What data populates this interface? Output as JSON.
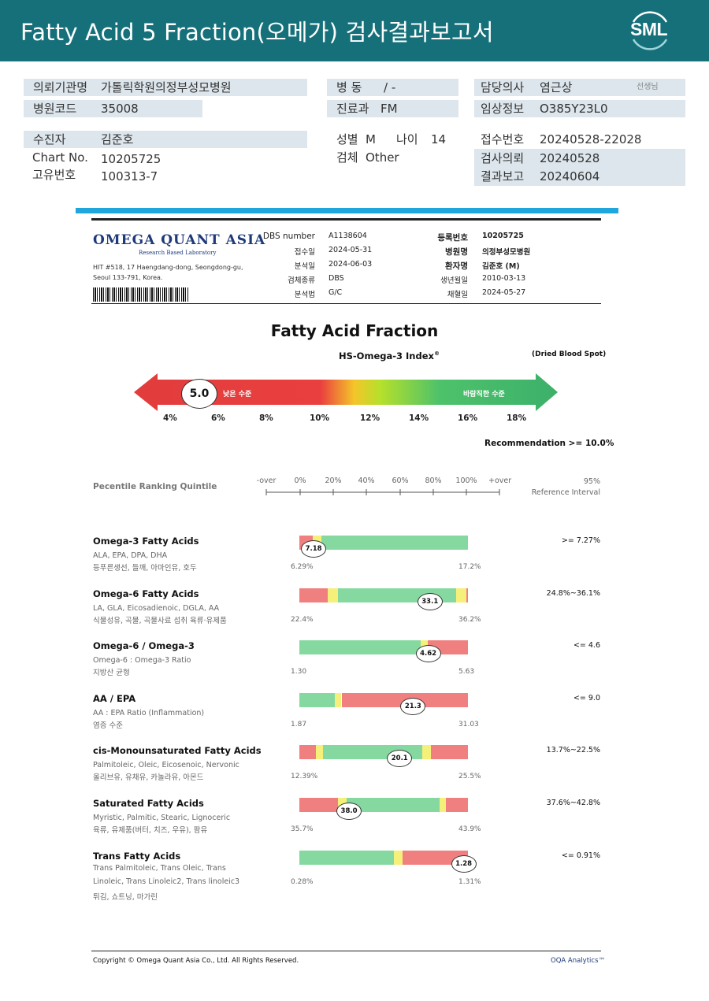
{
  "header": {
    "title": "Fatty Acid 5 Fraction(오메가) 검사결과보고서",
    "logo_text": "SML"
  },
  "patient": {
    "hospital_label": "의뢰기관명",
    "hospital_value": "가톨릭학원의정부성모병원",
    "code_label": "병원코드",
    "code_value": "35008",
    "ward_label": "병 동",
    "ward_value": "/ -",
    "dept_label": "진료과",
    "dept_value": "FM",
    "doctor_label": "담당의사",
    "doctor_value": "염근상",
    "doctor_suffix": "선생님",
    "clinical_label": "임상정보",
    "clinical_value": "O385Y23L0",
    "name_label": "수진자",
    "name_value": "김준호",
    "chart_label": "Chart No.",
    "chart_value": "10205725",
    "uid_label": "고유번호",
    "uid_value": "100313-7",
    "sex_label": "성별",
    "sex_value": "M",
    "age_label": "나이",
    "age_value": "14",
    "specimen_label": "검체",
    "specimen_value": "Other",
    "receipt_label": "접수번호",
    "receipt_value": "20240528-22028",
    "request_label": "검사의뢰",
    "request_value": "20240528",
    "report_label": "결과보고",
    "report_value": "20240604"
  },
  "lab": {
    "brand": "OMEGA QUANT ASIA",
    "brand_sub": "Research Based Laboratory",
    "address": "HIT #518, 17 Haengdang-dong, Seongdong-gu, Seoul 133-791, Korea.",
    "dbs_label": "DBS number",
    "dbs_value": "A1138604",
    "recv_label": "접수일",
    "recv_value": "2024-05-31",
    "anal_label": "분석일",
    "anal_value": "2024-06-03",
    "spec_label": "검체종류",
    "spec_value": "DBS",
    "method_label": "분석법",
    "method_value": "G/C",
    "reg_label": "등록번호",
    "reg_value": "10205725",
    "hosp_label": "병원명",
    "hosp_value": "의정부성모병원",
    "pat_label": "환자명",
    "pat_value": "김준호 (M)",
    "dob_label": "생년월일",
    "dob_value": "2010-03-13",
    "draw_label": "채혈일",
    "draw_value": "2024-05-27"
  },
  "index": {
    "heading": "Fatty Acid Fraction",
    "subheading": "HS-Omega-3 Index",
    "registered": "®",
    "specimen_note": "(Dried Blood Spot)",
    "value": "5.0",
    "value_num": 5.0,
    "low_label": "낮은 수준",
    "good_label": "바람직한 수준",
    "ticks": [
      "4%",
      "6%",
      "8%",
      "10%",
      "12%",
      "14%",
      "16%",
      "18%"
    ],
    "recommendation": "Recommendation  >= 10.0%"
  },
  "percentile": {
    "title": "Pecentile Ranking Quintile",
    "scale": [
      "-over",
      "0%",
      "20%",
      "40%",
      "60%",
      "80%",
      "100%",
      "+over"
    ],
    "ref_title": "95%",
    "ref_subtitle": "Reference Interval"
  },
  "rows": [
    {
      "name": "Omega-3 Fatty Acids",
      "sub": "ALA, EPA, DPA, DHA",
      "ko": "등푸른생선, 들깨, 아마인유, 호두",
      "min": "6.29%",
      "max": "17.2%",
      "value": "7.18",
      "pos": 0.08,
      "ref": ">= 7.27%",
      "segments": [
        [
          "#f08080",
          0,
          0.08
        ],
        [
          "#f5f07a",
          0.08,
          0.13
        ],
        [
          "#85d9a0",
          0.13,
          1.0
        ]
      ]
    },
    {
      "name": "Omega-6 Fatty Acids",
      "sub": "LA, GLA, Eicosadienoic, DGLA, AA",
      "ko": "식물성유, 곡물, 곡물사료 섭취 육류·유제품",
      "min": "22.4%",
      "max": "36.2%",
      "value": "33.1",
      "pos": 0.77,
      "ref": "24.8%~36.1%",
      "segments": [
        [
          "#f08080",
          0,
          0.17
        ],
        [
          "#f5f07a",
          0.17,
          0.23
        ],
        [
          "#85d9a0",
          0.23,
          0.93
        ],
        [
          "#f5f07a",
          0.93,
          0.99
        ],
        [
          "#f08080",
          0.99,
          1.0
        ]
      ]
    },
    {
      "name": "Omega-6 / Omega-3",
      "sub": "Omega-6 : Omega-3 Ratio",
      "ko": "지방산 균형",
      "min": "1.30",
      "max": "5.63",
      "value": "4.62",
      "pos": 0.76,
      "ref": "<= 4.6",
      "segments": [
        [
          "#85d9a0",
          0,
          0.72
        ],
        [
          "#f5f07a",
          0.72,
          0.76
        ],
        [
          "#f08080",
          0.76,
          1.0
        ]
      ]
    },
    {
      "name": "AA / EPA",
      "sub": "AA : EPA Ratio (Inflammation)",
      "ko": "염증 수준",
      "min": "1.87",
      "max": "31.03",
      "value": "21.3",
      "pos": 0.67,
      "ref": "<= 9.0",
      "segments": [
        [
          "#85d9a0",
          0,
          0.21
        ],
        [
          "#f5f07a",
          0.21,
          0.25
        ],
        [
          "#f08080",
          0.25,
          1.0
        ]
      ]
    },
    {
      "name": "cis-Monounsaturated Fatty Acids",
      "sub": "Palmitoleic, Oleic, Eicosenoic, Nervonic",
      "ko": "올리브유, 유채유, 카놀라유, 아몬드",
      "min": "12.39%",
      "max": "25.5%",
      "value": "20.1",
      "pos": 0.59,
      "ref": "13.7%~22.5%",
      "segments": [
        [
          "#f08080",
          0,
          0.1
        ],
        [
          "#f5f07a",
          0.1,
          0.14
        ],
        [
          "#85d9a0",
          0.14,
          0.73
        ],
        [
          "#f5f07a",
          0.73,
          0.78
        ],
        [
          "#f08080",
          0.78,
          1.0
        ]
      ]
    },
    {
      "name": "Saturated Fatty Acids",
      "sub": "Myristic, Palmitic, Stearic, Lignoceric",
      "ko": "육류, 유제품(버터, 치즈, 우유), 팜유",
      "min": "35.7%",
      "max": "43.9%",
      "value": "38.0",
      "pos": 0.29,
      "ref": "37.6%~42.8%",
      "segments": [
        [
          "#f08080",
          0,
          0.23
        ],
        [
          "#f5f07a",
          0.23,
          0.28
        ],
        [
          "#85d9a0",
          0.28,
          0.83
        ],
        [
          "#f5f07a",
          0.83,
          0.87
        ],
        [
          "#f08080",
          0.87,
          1.0
        ]
      ]
    },
    {
      "name": "Trans Fatty Acids",
      "sub": "Trans Palmitoleic, Trans Oleic, Trans Linoleic, Trans Linoleic2, Trans linoleic3",
      "ko": "튀김, 쇼트닝, 마가린",
      "min": "0.28%",
      "max": "1.31%",
      "value": "1.28",
      "pos": 0.97,
      "ref": "<= 0.91%",
      "segments": [
        [
          "#85d9a0",
          0,
          0.56
        ],
        [
          "#f5f07a",
          0.56,
          0.61
        ],
        [
          "#f08080",
          0.61,
          1.0
        ]
      ]
    }
  ],
  "footer": {
    "copyright": "Copyright © Omega Quant Asia Co., Ltd.  All Rights Reserved.",
    "brand": "OQA Analytics™"
  }
}
